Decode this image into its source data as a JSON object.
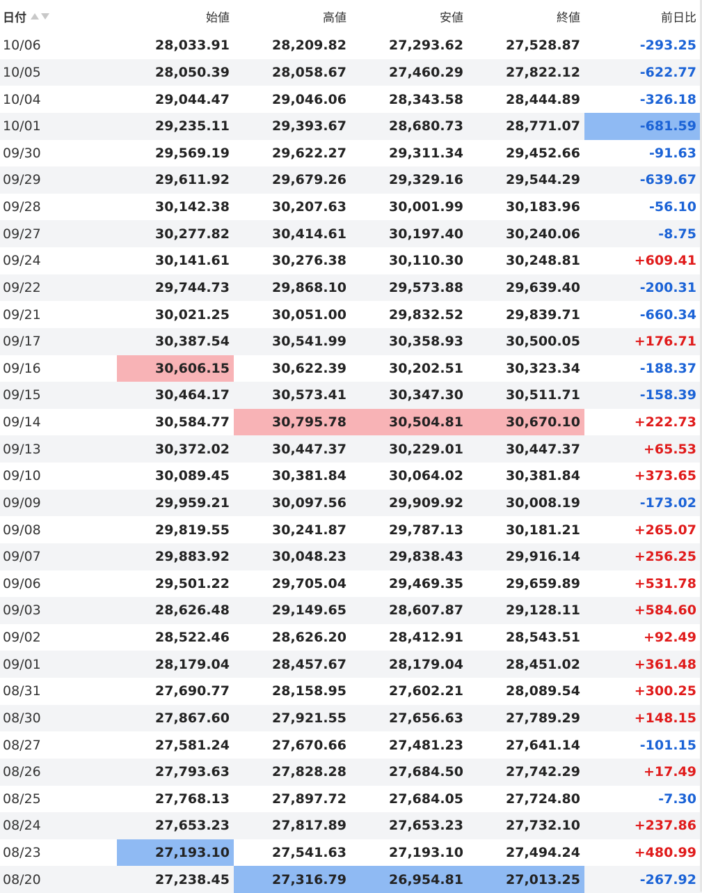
{
  "header": {
    "date": "日付",
    "open": "始値",
    "high": "高値",
    "low": "安値",
    "close": "終値",
    "change": "前日比"
  },
  "rows": [
    {
      "date": "10/06",
      "open": "28,033.91",
      "high": "28,209.82",
      "low": "27,293.62",
      "close": "27,528.87",
      "change": "-293.25",
      "dir": "neg",
      "hl": {}
    },
    {
      "date": "10/05",
      "open": "28,050.39",
      "high": "28,058.67",
      "low": "27,460.29",
      "close": "27,822.12",
      "change": "-622.77",
      "dir": "neg",
      "hl": {}
    },
    {
      "date": "10/04",
      "open": "29,044.47",
      "high": "29,046.06",
      "low": "28,343.58",
      "close": "28,444.89",
      "change": "-326.18",
      "dir": "neg",
      "hl": {}
    },
    {
      "date": "10/01",
      "open": "29,235.11",
      "high": "29,393.67",
      "low": "28,680.73",
      "close": "28,771.07",
      "change": "-681.59",
      "dir": "neg",
      "hl": {
        "change": "low"
      }
    },
    {
      "date": "09/30",
      "open": "29,569.19",
      "high": "29,622.27",
      "low": "29,311.34",
      "close": "29,452.66",
      "change": "-91.63",
      "dir": "neg",
      "hl": {}
    },
    {
      "date": "09/29",
      "open": "29,611.92",
      "high": "29,679.26",
      "low": "29,329.16",
      "close": "29,544.29",
      "change": "-639.67",
      "dir": "neg",
      "hl": {}
    },
    {
      "date": "09/28",
      "open": "30,142.38",
      "high": "30,207.63",
      "low": "30,001.99",
      "close": "30,183.96",
      "change": "-56.10",
      "dir": "neg",
      "hl": {}
    },
    {
      "date": "09/27",
      "open": "30,277.82",
      "high": "30,414.61",
      "low": "30,197.40",
      "close": "30,240.06",
      "change": "-8.75",
      "dir": "neg",
      "hl": {}
    },
    {
      "date": "09/24",
      "open": "30,141.61",
      "high": "30,276.38",
      "low": "30,110.30",
      "close": "30,248.81",
      "change": "+609.41",
      "dir": "pos",
      "hl": {}
    },
    {
      "date": "09/22",
      "open": "29,744.73",
      "high": "29,868.10",
      "low": "29,573.88",
      "close": "29,639.40",
      "change": "-200.31",
      "dir": "neg",
      "hl": {}
    },
    {
      "date": "09/21",
      "open": "30,021.25",
      "high": "30,051.00",
      "low": "29,832.52",
      "close": "29,839.71",
      "change": "-660.34",
      "dir": "neg",
      "hl": {}
    },
    {
      "date": "09/17",
      "open": "30,387.54",
      "high": "30,541.99",
      "low": "30,358.93",
      "close": "30,500.05",
      "change": "+176.71",
      "dir": "pos",
      "hl": {}
    },
    {
      "date": "09/16",
      "open": "30,606.15",
      "high": "30,622.39",
      "low": "30,202.51",
      "close": "30,323.34",
      "change": "-188.37",
      "dir": "neg",
      "hl": {
        "open": "high"
      }
    },
    {
      "date": "09/15",
      "open": "30,464.17",
      "high": "30,573.41",
      "low": "30,347.30",
      "close": "30,511.71",
      "change": "-158.39",
      "dir": "neg",
      "hl": {}
    },
    {
      "date": "09/14",
      "open": "30,584.77",
      "high": "30,795.78",
      "low": "30,504.81",
      "close": "30,670.10",
      "change": "+222.73",
      "dir": "pos",
      "hl": {
        "high": "high",
        "low": "high",
        "close": "high"
      }
    },
    {
      "date": "09/13",
      "open": "30,372.02",
      "high": "30,447.37",
      "low": "30,229.01",
      "close": "30,447.37",
      "change": "+65.53",
      "dir": "pos",
      "hl": {}
    },
    {
      "date": "09/10",
      "open": "30,089.45",
      "high": "30,381.84",
      "low": "30,064.02",
      "close": "30,381.84",
      "change": "+373.65",
      "dir": "pos",
      "hl": {}
    },
    {
      "date": "09/09",
      "open": "29,959.21",
      "high": "30,097.56",
      "low": "29,909.92",
      "close": "30,008.19",
      "change": "-173.02",
      "dir": "neg",
      "hl": {}
    },
    {
      "date": "09/08",
      "open": "29,819.55",
      "high": "30,241.87",
      "low": "29,787.13",
      "close": "30,181.21",
      "change": "+265.07",
      "dir": "pos",
      "hl": {}
    },
    {
      "date": "09/07",
      "open": "29,883.92",
      "high": "30,048.23",
      "low": "29,838.43",
      "close": "29,916.14",
      "change": "+256.25",
      "dir": "pos",
      "hl": {}
    },
    {
      "date": "09/06",
      "open": "29,501.22",
      "high": "29,705.04",
      "low": "29,469.35",
      "close": "29,659.89",
      "change": "+531.78",
      "dir": "pos",
      "hl": {}
    },
    {
      "date": "09/03",
      "open": "28,626.48",
      "high": "29,149.65",
      "low": "28,607.87",
      "close": "29,128.11",
      "change": "+584.60",
      "dir": "pos",
      "hl": {}
    },
    {
      "date": "09/02",
      "open": "28,522.46",
      "high": "28,626.20",
      "low": "28,412.91",
      "close": "28,543.51",
      "change": "+92.49",
      "dir": "pos",
      "hl": {}
    },
    {
      "date": "09/01",
      "open": "28,179.04",
      "high": "28,457.67",
      "low": "28,179.04",
      "close": "28,451.02",
      "change": "+361.48",
      "dir": "pos",
      "hl": {}
    },
    {
      "date": "08/31",
      "open": "27,690.77",
      "high": "28,158.95",
      "low": "27,602.21",
      "close": "28,089.54",
      "change": "+300.25",
      "dir": "pos",
      "hl": {}
    },
    {
      "date": "08/30",
      "open": "27,867.60",
      "high": "27,921.55",
      "low": "27,656.63",
      "close": "27,789.29",
      "change": "+148.15",
      "dir": "pos",
      "hl": {}
    },
    {
      "date": "08/27",
      "open": "27,581.24",
      "high": "27,670.66",
      "low": "27,481.23",
      "close": "27,641.14",
      "change": "-101.15",
      "dir": "neg",
      "hl": {}
    },
    {
      "date": "08/26",
      "open": "27,793.63",
      "high": "27,828.28",
      "low": "27,684.50",
      "close": "27,742.29",
      "change": "+17.49",
      "dir": "pos",
      "hl": {}
    },
    {
      "date": "08/25",
      "open": "27,768.13",
      "high": "27,897.72",
      "low": "27,684.05",
      "close": "27,724.80",
      "change": "-7.30",
      "dir": "neg",
      "hl": {}
    },
    {
      "date": "08/24",
      "open": "27,653.23",
      "high": "27,817.89",
      "low": "27,653.23",
      "close": "27,732.10",
      "change": "+237.86",
      "dir": "pos",
      "hl": {}
    },
    {
      "date": "08/23",
      "open": "27,193.10",
      "high": "27,541.63",
      "low": "27,193.10",
      "close": "27,494.24",
      "change": "+480.99",
      "dir": "pos",
      "hl": {
        "open": "low"
      }
    },
    {
      "date": "08/20",
      "open": "27,238.45",
      "high": "27,316.79",
      "low": "26,954.81",
      "close": "27,013.25",
      "change": "-267.92",
      "dir": "neg",
      "hl": {
        "high": "low",
        "low": "low",
        "close": "low"
      }
    }
  ]
}
